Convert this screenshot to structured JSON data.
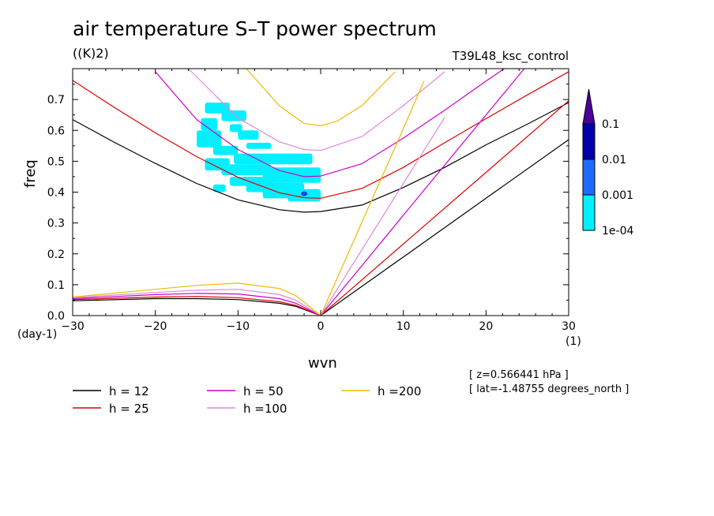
{
  "header": {
    "title": "air temperature S–T power spectrum",
    "units": "((K)2)",
    "run_label": "T39L48_ksc_control"
  },
  "axes": {
    "xlabel": "wvn",
    "ylabel": "freq",
    "x_unit": "(1)",
    "y_unit": "(day-1)"
  },
  "meta": {
    "level": "[ z=0.566441 hPa ]",
    "latitude": "[ lat=-1.48755 degrees_north ]"
  },
  "chart_data": {
    "type": "line",
    "title": "air temperature S–T power spectrum",
    "xlabel": "wvn",
    "ylabel": "freq",
    "xlim": [
      -30,
      30
    ],
    "ylim": [
      0,
      0.8
    ],
    "x_ticks": [
      -30,
      -20,
      -10,
      0,
      10,
      20,
      30
    ],
    "y_ticks": [
      0.0,
      0.1,
      0.2,
      0.3,
      0.4,
      0.5,
      0.6,
      0.7
    ],
    "x_tick_labels": [
      "−30",
      "−20",
      "−10",
      "0",
      "10",
      "20",
      "30"
    ],
    "y_tick_labels": [
      "0.0",
      "0.1",
      "0.2",
      "0.3",
      "0.4",
      "0.5",
      "0.6",
      "0.7"
    ],
    "series": [
      {
        "name": "h = 12",
        "color": "#000000",
        "x_gravity": [
          -30,
          -25,
          -20,
          -15,
          -10,
          -5,
          -2,
          0,
          5,
          10,
          15,
          20,
          25,
          30
        ],
        "y_gravity": [
          0.635,
          0.562,
          0.493,
          0.428,
          0.375,
          0.343,
          0.335,
          0.337,
          0.358,
          0.415,
          0.48,
          0.553,
          0.62,
          0.69
        ],
        "x_kelvin": [
          0,
          10,
          20,
          30
        ],
        "y_kelvin": [
          0,
          0.19,
          0.38,
          0.57
        ],
        "x_rossby": [
          -30,
          -20,
          -15,
          -10,
          -5,
          -3,
          0
        ],
        "y_rossby": [
          0.048,
          0.055,
          0.055,
          0.052,
          0.04,
          0.03,
          0
        ]
      },
      {
        "name": "h = 25",
        "color": "#dd0000",
        "x_gravity": [
          -30,
          -25,
          -20,
          -15,
          -10,
          -5,
          -2,
          0,
          5,
          10,
          15,
          20,
          25,
          30
        ],
        "y_gravity": [
          0.762,
          0.675,
          0.592,
          0.515,
          0.448,
          0.398,
          0.382,
          0.38,
          0.412,
          0.48,
          0.56,
          0.638,
          0.715,
          0.79
        ],
        "x_kelvin": [
          0,
          10,
          20,
          30
        ],
        "y_kelvin": [
          0,
          0.232,
          0.464,
          0.696
        ],
        "x_rossby": [
          -30,
          -20,
          -15,
          -10,
          -5,
          -3,
          0
        ],
        "y_rossby": [
          0.052,
          0.06,
          0.062,
          0.058,
          0.045,
          0.033,
          0
        ]
      },
      {
        "name": "h = 50",
        "color": "#cc00cc",
        "x_gravity": [
          -20,
          -15,
          -10,
          -5,
          -2,
          0,
          5,
          10,
          15,
          20,
          25
        ],
        "y_gravity": [
          0.79,
          0.635,
          0.538,
          0.47,
          0.45,
          0.452,
          0.492,
          0.575,
          0.665,
          0.76,
          0.85
        ],
        "x_kelvin": [
          0,
          5,
          10,
          18,
          25
        ],
        "y_kelvin": [
          0,
          0.162,
          0.325,
          0.585,
          0.812
        ],
        "x_rossby": [
          -30,
          -20,
          -15,
          -10,
          -5,
          -3,
          0
        ],
        "y_rossby": [
          0.055,
          0.068,
          0.072,
          0.07,
          0.055,
          0.04,
          0
        ]
      },
      {
        "name": "h =100",
        "color": "#dd88dd",
        "x_gravity": [
          -16,
          -10,
          -5,
          -2,
          0,
          5,
          10,
          15
        ],
        "y_gravity": [
          0.8,
          0.64,
          0.563,
          0.538,
          0.535,
          0.58,
          0.68,
          0.79
        ],
        "x_kelvin": [
          0,
          5,
          10,
          15
        ],
        "y_kelvin": [
          0,
          0.214,
          0.428,
          0.642
        ],
        "x_rossby": [
          -30,
          -20,
          -15,
          -10,
          -5,
          -3,
          0
        ],
        "y_rossby": [
          0.058,
          0.075,
          0.082,
          0.085,
          0.068,
          0.05,
          0
        ]
      },
      {
        "name": "h =200",
        "color": "#eebb00",
        "x_gravity": [
          -9,
          -5,
          -2,
          0,
          2,
          5,
          9
        ],
        "y_gravity": [
          0.8,
          0.68,
          0.622,
          0.615,
          0.63,
          0.68,
          0.79
        ],
        "x_kelvin": [
          0,
          5,
          10,
          12.5
        ],
        "y_kelvin": [
          0,
          0.303,
          0.606,
          0.76
        ],
        "x_rossby": [
          -30,
          -20,
          -15,
          -10,
          -5,
          -3,
          0
        ],
        "y_rossby": [
          0.06,
          0.085,
          0.098,
          0.105,
          0.088,
          0.065,
          0
        ]
      }
    ],
    "colorbar": {
      "levels": [
        "0.1",
        "0.01",
        "0.001",
        "1e-04"
      ],
      "colors": [
        "#4a0099",
        "#0000aa",
        "#1e6cff",
        "#00f0ff"
      ]
    },
    "shaded_region": {
      "x": [
        -15,
        0
      ],
      "y": [
        0.37,
        0.69
      ],
      "level": "1e-04",
      "color": "#00f0ff"
    },
    "legend_position": "bottom-left"
  }
}
